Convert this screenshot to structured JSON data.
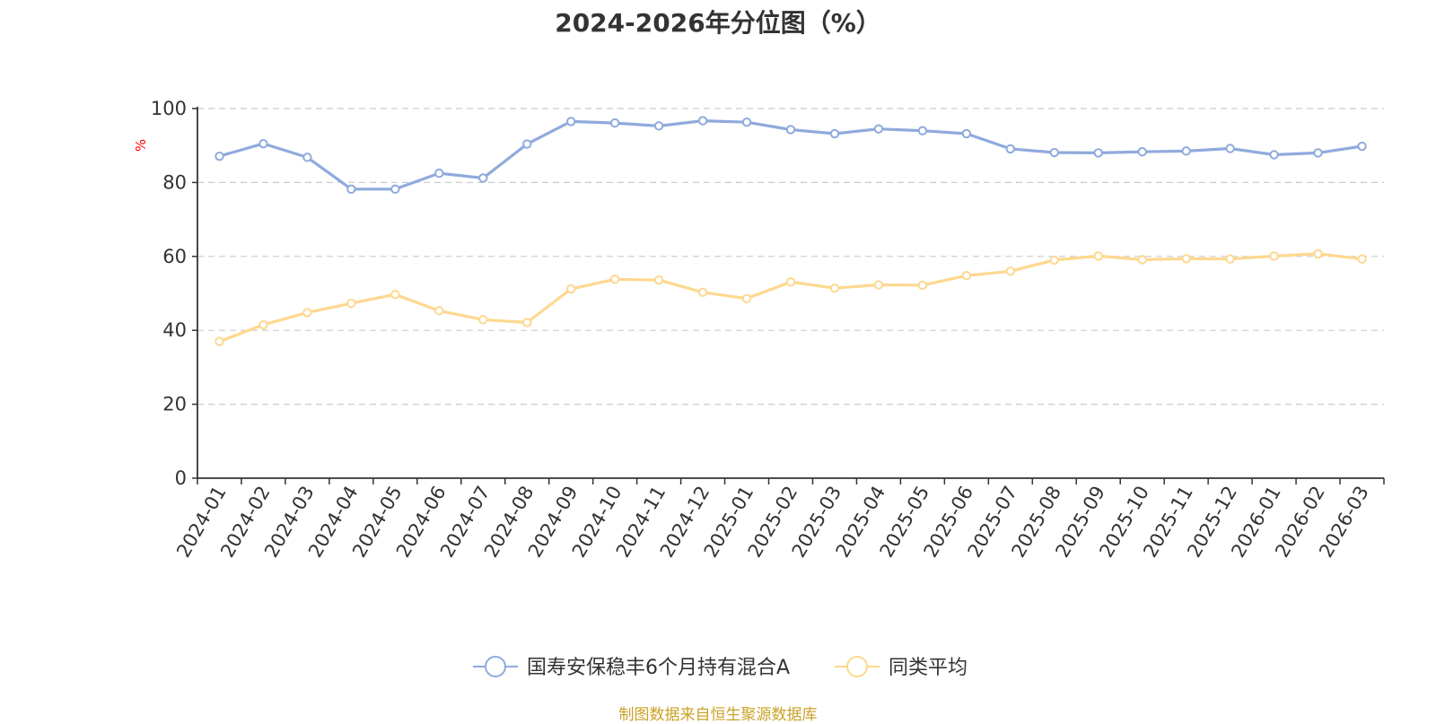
{
  "chart_data": {
    "type": "line",
    "title": "2024-2026年分位图（%）",
    "ylabel": "%",
    "ylim": [
      0,
      100
    ],
    "yticks": [
      0,
      20,
      40,
      60,
      80,
      100
    ],
    "grid": "horizontal dashed",
    "legend_position": "bottom-center",
    "categories": [
      "2024-01",
      "2024-02",
      "2024-03",
      "2024-04",
      "2024-05",
      "2024-06",
      "2024-07",
      "2024-08",
      "2024-09",
      "2024-10",
      "2024-11",
      "2024-12",
      "2025-01",
      "2025-02",
      "2025-03",
      "2025-04",
      "2025-05",
      "2025-06",
      "2025-07",
      "2025-08",
      "2025-09",
      "2025-10",
      "2025-11",
      "2025-12",
      "2026-01",
      "2026-02",
      "2026-03"
    ],
    "series": [
      {
        "name": "国寿安保稳丰6个月持有混合A",
        "color": "#8faadc",
        "values": [
          87.1,
          90.5,
          86.8,
          78.2,
          78.2,
          82.5,
          81.2,
          90.4,
          96.5,
          96.1,
          95.3,
          96.7,
          96.3,
          94.3,
          93.2,
          94.5,
          94.0,
          93.2,
          89.1,
          88.1,
          88.0,
          88.3,
          88.5,
          89.2,
          87.5,
          88.0,
          89.8
        ]
      },
      {
        "name": "同类平均",
        "color": "#fdd88f",
        "values": [
          37.0,
          41.5,
          44.8,
          47.3,
          49.7,
          45.3,
          42.9,
          42.1,
          51.2,
          53.8,
          53.6,
          50.3,
          48.6,
          53.1,
          51.4,
          52.3,
          52.2,
          54.8,
          56.0,
          59.0,
          60.1,
          59.1,
          59.4,
          59.3,
          60.1,
          60.7,
          59.3
        ]
      }
    ]
  },
  "footer": {
    "source": "制图数据来自恒生聚源数据库",
    "source_color": "#c9a227"
  },
  "colors": {
    "axis": "#333333",
    "grid": "#cccccc",
    "unit_label": "#ff0000"
  }
}
